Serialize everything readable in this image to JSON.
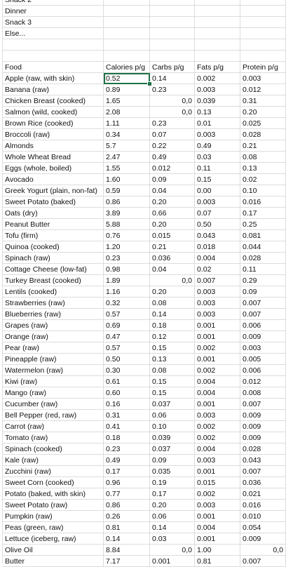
{
  "top_rows": [
    "Snack 2",
    "Dinner",
    "Snack 3",
    "Else...",
    "",
    ""
  ],
  "headers": [
    "Food",
    "Calories p/g",
    "Carbs p/g",
    "Fats p/g",
    "Protein p/g"
  ],
  "rows": [
    [
      "Apple (raw, with skin)",
      "0.52",
      "0.14",
      "0.002",
      "0.003"
    ],
    [
      "Banana (raw)",
      "0.89",
      "0.23",
      "0.003",
      "0.012"
    ],
    [
      "Chicken Breast (cooked)",
      "1.65",
      "0,0",
      "0.039",
      "0.31"
    ],
    [
      "Salmon (wild, cooked)",
      "2.08",
      "0,0",
      "0.13",
      "0.20"
    ],
    [
      "Brown Rice (cooked)",
      "1.11",
      "0.23",
      "0.01",
      "0.025"
    ],
    [
      "Broccoli (raw)",
      "0.34",
      "0.07",
      "0.003",
      "0.028"
    ],
    [
      "Almonds",
      "5.7",
      "0.22",
      "0.49",
      "0.21"
    ],
    [
      "Whole Wheat Bread",
      "2.47",
      "0.49",
      "0.03",
      "0.08"
    ],
    [
      "Eggs (whole, boiled)",
      "1.55",
      "0.012",
      "0.11",
      "0.13"
    ],
    [
      "Avocado",
      "1.60",
      "0.09",
      "0.15",
      "0.02"
    ],
    [
      "Greek Yogurt (plain, non-fat)",
      "0.59",
      "0.04",
      "0.00",
      "0.10"
    ],
    [
      "Sweet Potato (baked)",
      "0.86",
      "0.20",
      "0.003",
      "0.016"
    ],
    [
      "Oats (dry)",
      "3.89",
      "0.66",
      "0.07",
      "0.17"
    ],
    [
      "Peanut Butter",
      "5.88",
      "0.20",
      "0.50",
      "0.25"
    ],
    [
      "Tofu (firm)",
      "0.76",
      "0.015",
      "0.043",
      "0.081"
    ],
    [
      "Quinoa (cooked)",
      "1.20",
      "0.21",
      "0.018",
      "0.044"
    ],
    [
      "Spinach (raw)",
      "0.23",
      "0.036",
      "0.004",
      "0.028"
    ],
    [
      "Cottage Cheese (low-fat)",
      "0.98",
      "0.04",
      "0.02",
      "0.11"
    ],
    [
      "Turkey Breast (cooked)",
      "1.89",
      "0,0",
      "0.007",
      "0.29"
    ],
    [
      "Lentils (cooked)",
      "1.16",
      "0.20",
      "0.003",
      "0.09"
    ],
    [
      "Strawberries (raw)",
      "0.32",
      "0.08",
      "0.003",
      "0.007"
    ],
    [
      "Blueberries (raw)",
      "0.57",
      "0.14",
      "0.003",
      "0.007"
    ],
    [
      "Grapes (raw)",
      "0.69",
      "0.18",
      "0.001",
      "0.006"
    ],
    [
      "Orange (raw)",
      "0.47",
      "0.12",
      "0.001",
      "0.009"
    ],
    [
      "Pear (raw)",
      "0.57",
      "0.15",
      "0.002",
      "0.003"
    ],
    [
      "Pineapple (raw)",
      "0.50",
      "0.13",
      "0.001",
      "0.005"
    ],
    [
      "Watermelon (raw)",
      "0.30",
      "0.08",
      "0.002",
      "0.006"
    ],
    [
      "Kiwi (raw)",
      "0.61",
      "0.15",
      "0.004",
      "0.012"
    ],
    [
      "Mango (raw)",
      "0.60",
      "0.15",
      "0.004",
      "0.008"
    ],
    [
      "Cucumber (raw)",
      "0.16",
      "0.037",
      "0.001",
      "0.007"
    ],
    [
      "Bell Pepper (red, raw)",
      "0.31",
      "0.06",
      "0.003",
      "0.009"
    ],
    [
      "Carrot (raw)",
      "0.41",
      "0.10",
      "0.002",
      "0.009"
    ],
    [
      "Tomato (raw)",
      "0.18",
      "0.039",
      "0.002",
      "0.009"
    ],
    [
      "Spinach (cooked)",
      "0.23",
      "0.037",
      "0.004",
      "0.028"
    ],
    [
      "Kale (raw)",
      "0.49",
      "0.09",
      "0.003",
      "0.043"
    ],
    [
      "Zucchini (raw)",
      "0.17",
      "0.035",
      "0.001",
      "0.007"
    ],
    [
      "Sweet Corn (cooked)",
      "0.96",
      "0.19",
      "0.015",
      "0.036"
    ],
    [
      "Potato (baked, with skin)",
      "0.77",
      "0.17",
      "0.002",
      "0.021"
    ],
    [
      "Sweet Potato (raw)",
      "0.86",
      "0.20",
      "0.003",
      "0.016"
    ],
    [
      "Pumpkin (raw)",
      "0.26",
      "0.06",
      "0.001",
      "0.010"
    ],
    [
      "Peas (green, raw)",
      "0.81",
      "0.14",
      "0.004",
      "0.054"
    ],
    [
      "Lettuce (iceberg, raw)",
      "0.14",
      "0.03",
      "0.001",
      "0.009"
    ],
    [
      "Olive Oil",
      "8.84",
      "0,0",
      "1.00",
      "0,0"
    ],
    [
      "Butter",
      "7.17",
      "0.001",
      "0.81",
      "0.007"
    ]
  ],
  "right_aligned_value": "0,0",
  "selection_color": "#1e7145"
}
